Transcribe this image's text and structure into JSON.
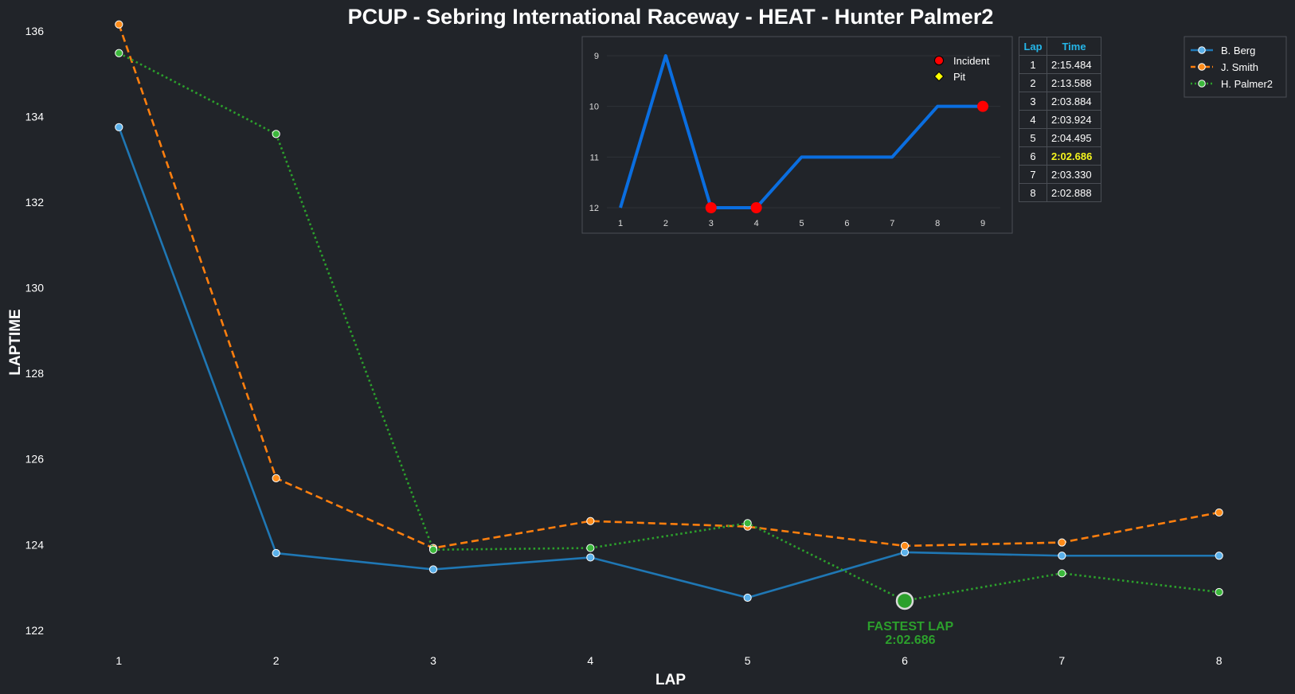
{
  "title": "PCUP - Sebring International Raceway - HEAT - Hunter Palmer2",
  "chart_data": [
    {
      "type": "line",
      "title": "PCUP - Sebring International Raceway - HEAT - Hunter Palmer2",
      "xlabel": "LAP",
      "ylabel": "LAPTIME",
      "x": [
        1,
        2,
        3,
        4,
        5,
        6,
        7,
        8
      ],
      "xlim": [
        0.75,
        8.25
      ],
      "ylim": [
        121.7,
        136.2
      ],
      "yticks": [
        122,
        124,
        126,
        128,
        130,
        132,
        134,
        136
      ],
      "grid": false,
      "legend_position": "top-right",
      "series": [
        {
          "name": "B. Berg",
          "color": "#1f77b4",
          "marker_color": "#5bb1ea",
          "style": "solid",
          "values": [
            133.75,
            123.8,
            123.42,
            123.7,
            122.76,
            123.82,
            123.74,
            123.74
          ]
        },
        {
          "name": "J. Smith",
          "color": "#ff7f0e",
          "marker_color": "#ff8c1a",
          "style": "dashed",
          "values": [
            136.15,
            125.55,
            123.92,
            124.55,
            124.42,
            123.97,
            124.05,
            124.75
          ]
        },
        {
          "name": "H. Palmer2",
          "color": "#2ca02c",
          "marker_color": "#3cb83c",
          "style": "dotted",
          "values": [
            135.48,
            133.59,
            123.88,
            123.92,
            124.5,
            122.69,
            123.33,
            122.89
          ]
        }
      ],
      "annotation": {
        "lap": 6,
        "value": 122.686,
        "line1": "FASTEST LAP",
        "line2": "2:02.686",
        "color": "#2ca02c"
      }
    },
    {
      "type": "line",
      "title": "",
      "x": [
        1,
        2,
        3,
        4,
        5,
        6,
        7,
        8,
        9
      ],
      "values": [
        12,
        9,
        12,
        12,
        11,
        11,
        11,
        10,
        10
      ],
      "ylim": [
        12,
        9
      ],
      "yticks": [
        9,
        10,
        11,
        12
      ],
      "inverted_y": true,
      "color": "#0a6ee0",
      "incidents": [
        3,
        4,
        9
      ],
      "pits": [],
      "legend": {
        "incident": "Incident",
        "pit": "Pit",
        "incident_color": "#ff0000",
        "pit_color": "#ffff00"
      }
    }
  ],
  "lap_table": {
    "headers": {
      "lap": "Lap",
      "time": "Time"
    },
    "rows": [
      {
        "lap": "1",
        "time": "2:15.484"
      },
      {
        "lap": "2",
        "time": "2:13.588"
      },
      {
        "lap": "3",
        "time": "2:03.884"
      },
      {
        "lap": "4",
        "time": "2:03.924"
      },
      {
        "lap": "5",
        "time": "2:04.495"
      },
      {
        "lap": "6",
        "time": "2:02.686"
      },
      {
        "lap": "7",
        "time": "2:03.330"
      },
      {
        "lap": "8",
        "time": "2:02.888"
      }
    ],
    "best_lap": "6",
    "best_color": "#f5f51e",
    "header_color": "#25b6e8"
  }
}
